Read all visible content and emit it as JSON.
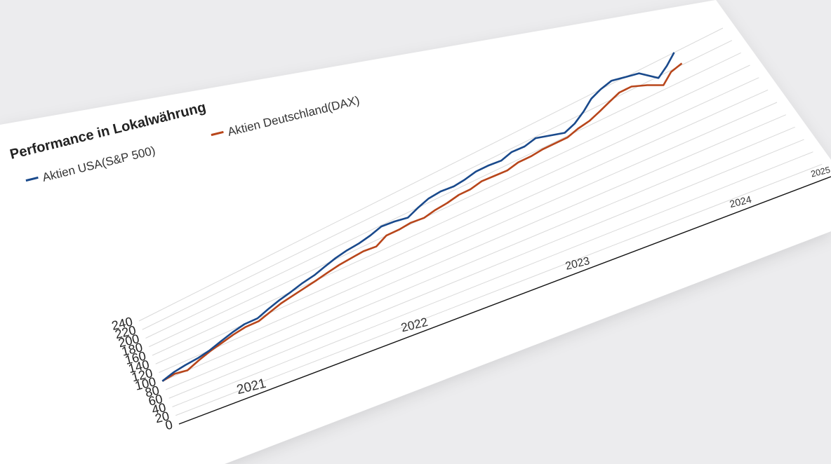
{
  "chart_data": {
    "type": "line",
    "title": "Performance in Lokalwährung",
    "ylim": [
      0,
      240
    ],
    "yticks": [
      "0",
      "20",
      "40",
      "60",
      "80",
      "100",
      "120",
      "140",
      "160",
      "180",
      "200",
      "220",
      "240"
    ],
    "xticks": [
      "2021",
      "2022",
      "2023",
      "2024",
      "2025"
    ],
    "xrange": [
      "2021-01-01",
      "2025-01-01"
    ],
    "grid": true,
    "legend_position": "top-left",
    "series": [
      {
        "name": "Aktien USA(S&P 500)",
        "color": "#1a4a8c",
        "x": [
          "2021-01-01",
          "2021-02-01",
          "2021-03-01",
          "2021-04-01",
          "2021-05-01",
          "2021-06-01",
          "2021-07-01",
          "2021-08-01",
          "2021-09-01",
          "2021-10-01",
          "2021-11-01",
          "2021-12-01",
          "2022-01-01",
          "2022-02-01",
          "2022-03-01",
          "2022-04-01",
          "2022-05-01",
          "2022-06-01",
          "2022-07-01",
          "2022-08-01",
          "2022-09-01",
          "2022-10-01",
          "2022-11-01",
          "2022-12-01",
          "2023-01-01",
          "2023-02-01",
          "2023-03-01",
          "2023-04-01",
          "2023-05-01",
          "2023-06-01",
          "2023-07-01",
          "2023-08-01",
          "2023-09-01",
          "2023-10-01",
          "2023-11-01",
          "2023-12-01",
          "2024-01-01",
          "2024-02-01",
          "2024-03-01",
          "2024-04-01",
          "2024-05-01",
          "2024-06-01",
          "2024-07-01",
          "2024-08-01",
          "2024-09-01"
        ],
        "values": [
          100,
          108,
          112,
          115,
          120,
          128,
          135,
          140,
          140,
          148,
          155,
          160,
          166,
          170,
          176,
          182,
          186,
          188,
          192,
          198,
          196,
          192,
          200,
          206,
          208,
          206,
          208,
          212,
          212,
          210,
          215,
          214,
          218,
          212,
          206,
          212,
          222,
          234,
          240,
          244,
          240,
          236,
          218,
          228,
          240
        ]
      },
      {
        "name": "Aktien Deutschland(DAX)",
        "color": "#b8461b",
        "x": [
          "2021-01-01",
          "2021-02-01",
          "2021-03-01",
          "2021-04-01",
          "2021-05-01",
          "2021-06-01",
          "2021-07-01",
          "2021-08-01",
          "2021-09-01",
          "2021-10-01",
          "2021-11-01",
          "2021-12-01",
          "2022-01-01",
          "2022-02-01",
          "2022-03-01",
          "2022-04-01",
          "2022-05-01",
          "2022-06-01",
          "2022-07-01",
          "2022-08-01",
          "2022-09-01",
          "2022-10-01",
          "2022-11-01",
          "2022-12-01",
          "2023-01-01",
          "2023-02-01",
          "2023-03-01",
          "2023-04-01",
          "2023-05-01",
          "2023-06-01",
          "2023-07-01",
          "2023-08-01",
          "2023-09-01",
          "2023-10-01",
          "2023-11-01",
          "2023-12-01",
          "2024-01-01",
          "2024-02-01",
          "2024-03-01",
          "2024-04-01",
          "2024-05-01",
          "2024-06-01",
          "2024-07-01",
          "2024-08-01",
          "2024-09-01"
        ],
        "values": [
          100,
          104,
          100,
          110,
          118,
          124,
          130,
          134,
          134,
          141,
          148,
          152,
          156,
          160,
          164,
          168,
          170,
          172,
          170,
          180,
          180,
          182,
          180,
          184,
          186,
          190,
          190,
          194,
          193,
          192,
          196,
          196,
          198,
          198,
          198,
          203,
          206,
          212,
          218,
          224,
          224,
          216,
          206,
          218,
          222
        ]
      }
    ]
  }
}
